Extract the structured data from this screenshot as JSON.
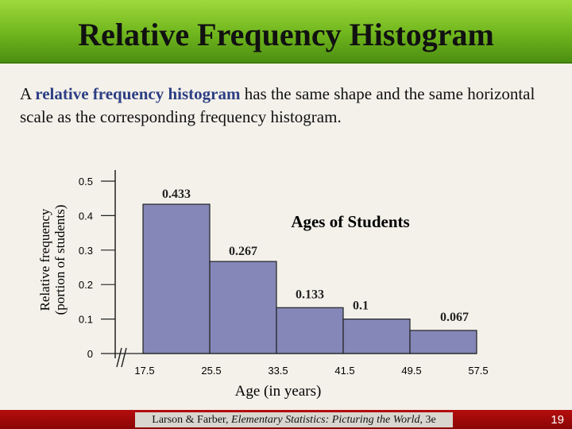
{
  "slide": {
    "title": "Relative Frequency Histogram",
    "intro_before": "A ",
    "intro_highlight": "relative frequency histogram",
    "intro_after": " has the same shape and the same horizontal scale as the corresponding frequency histogram.",
    "footer_authors": "Larson & Farber, ",
    "footer_book": "Elementary Statistics: Picturing the World",
    "footer_edition": ", 3e",
    "page_number": "19"
  },
  "chart_data": {
    "type": "bar",
    "title": "Ages of Students",
    "xlabel": "Age (in years)",
    "ylabel_line1": "Relative frequency",
    "ylabel_line2": "(portion of students)",
    "boundaries": [
      "17.5",
      "25.5",
      "33.5",
      "41.5",
      "49.5",
      "57.5"
    ],
    "values": [
      0.433,
      0.267,
      0.133,
      0.1,
      0.067
    ],
    "value_labels": [
      "0.433",
      "0.267",
      "0.133",
      "0.1",
      "0.067"
    ],
    "yticks": [
      "0",
      "0.1",
      "0.2",
      "0.3",
      "0.4",
      "0.5"
    ],
    "ylim": [
      0,
      0.5
    ],
    "bar_color": "#8487b7",
    "axis_break": true
  }
}
